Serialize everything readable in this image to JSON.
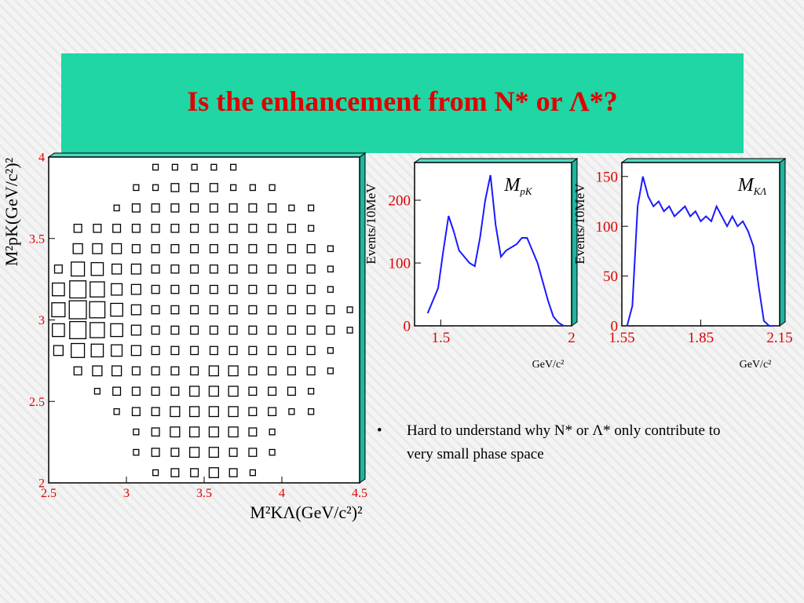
{
  "slide": {
    "title": "Is the enhancement from N* or Λ*?",
    "bullet": "Hard to understand why N* or Λ* only contribute to very small phase space"
  },
  "chart_data": [
    {
      "type": "hist2d",
      "ylabel": "M²pK(GeV/c²)²",
      "xlabel": "M²KΛ(GeV/c²)²",
      "xlim": [
        2.5,
        4.5
      ],
      "ylim": [
        2,
        4
      ],
      "xticks": [
        2.5,
        3,
        3.5,
        4,
        4.5
      ],
      "yticks": [
        2,
        2.5,
        3,
        3.5,
        4
      ],
      "x": [
        2.5625,
        2.6875,
        2.8125,
        2.9375,
        3.0625,
        3.1875,
        3.3125,
        3.4375,
        3.5625,
        3.6875,
        3.8125,
        3.9375,
        4.0625,
        4.1875,
        4.3125,
        4.4375
      ],
      "y": [
        2.0625,
        2.1875,
        2.3125,
        2.4375,
        2.5625,
        2.6875,
        2.8125,
        2.9375,
        3.0625,
        3.1875,
        3.3125,
        3.4375,
        3.5625,
        3.6875,
        3.8125,
        3.9375
      ],
      "z": [
        [
          0,
          0,
          0,
          0,
          0,
          1,
          2,
          2,
          3,
          2,
          1,
          0,
          0,
          0,
          0,
          0
        ],
        [
          0,
          0,
          0,
          0,
          1,
          2,
          2,
          3,
          3,
          2,
          2,
          1,
          0,
          0,
          0,
          0
        ],
        [
          0,
          0,
          0,
          0,
          1,
          2,
          3,
          3,
          3,
          3,
          2,
          1,
          0,
          0,
          0,
          0
        ],
        [
          0,
          0,
          0,
          1,
          2,
          2,
          3,
          3,
          3,
          3,
          2,
          2,
          1,
          1,
          0,
          0
        ],
        [
          0,
          0,
          1,
          2,
          2,
          2,
          2,
          3,
          3,
          3,
          2,
          2,
          2,
          1,
          0,
          0
        ],
        [
          0,
          2,
          3,
          3,
          2,
          2,
          2,
          2,
          3,
          3,
          2,
          2,
          2,
          2,
          1,
          0
        ],
        [
          3,
          6,
          5,
          4,
          3,
          2,
          2,
          2,
          2,
          2,
          2,
          2,
          2,
          2,
          1,
          0
        ],
        [
          5,
          9,
          7,
          5,
          3,
          2,
          2,
          2,
          2,
          2,
          2,
          2,
          2,
          2,
          2,
          1
        ],
        [
          6,
          10,
          8,
          5,
          3,
          2,
          2,
          2,
          2,
          2,
          2,
          2,
          2,
          2,
          2,
          1
        ],
        [
          5,
          9,
          7,
          4,
          3,
          2,
          2,
          2,
          2,
          2,
          2,
          2,
          2,
          2,
          1,
          0
        ],
        [
          2,
          6,
          5,
          3,
          3,
          2,
          2,
          2,
          2,
          2,
          2,
          2,
          2,
          2,
          1,
          0
        ],
        [
          0,
          3,
          3,
          3,
          2,
          2,
          2,
          2,
          2,
          2,
          2,
          2,
          2,
          2,
          1,
          0
        ],
        [
          0,
          2,
          2,
          2,
          2,
          2,
          2,
          2,
          2,
          2,
          2,
          2,
          2,
          1,
          0,
          0
        ],
        [
          0,
          0,
          0,
          1,
          2,
          2,
          2,
          2,
          2,
          2,
          2,
          2,
          1,
          1,
          0,
          0
        ],
        [
          0,
          0,
          0,
          0,
          1,
          1,
          2,
          2,
          2,
          1,
          1,
          1,
          0,
          0,
          0,
          0
        ],
        [
          0,
          0,
          0,
          0,
          0,
          1,
          1,
          1,
          1,
          1,
          0,
          0,
          0,
          0,
          0,
          0
        ]
      ],
      "color": "#000000"
    },
    {
      "type": "line",
      "ylabel": "Events/10MeV",
      "xlabel": "GeV/c²",
      "annotation": "M",
      "annotation_sub": "pK",
      "xlim": [
        1.4,
        2.0
      ],
      "ylim": [
        0,
        260
      ],
      "xticks": [
        1.5,
        2
      ],
      "yticks": [
        0,
        100,
        200
      ],
      "x": [
        1.45,
        1.47,
        1.49,
        1.51,
        1.53,
        1.55,
        1.57,
        1.59,
        1.61,
        1.63,
        1.65,
        1.67,
        1.69,
        1.71,
        1.73,
        1.75,
        1.77,
        1.79,
        1.81,
        1.83,
        1.85,
        1.87,
        1.89,
        1.91,
        1.93,
        1.95,
        1.97
      ],
      "values": [
        20,
        40,
        60,
        120,
        175,
        150,
        120,
        110,
        100,
        95,
        140,
        200,
        240,
        160,
        110,
        120,
        125,
        130,
        140,
        140,
        120,
        100,
        70,
        40,
        15,
        5,
        0
      ],
      "color": "#1a1aff"
    },
    {
      "type": "line",
      "ylabel": "Events/10MeV",
      "xlabel": "GeV/c²",
      "annotation": "M",
      "annotation_sub": "KΛ",
      "xlim": [
        1.55,
        2.15
      ],
      "ylim": [
        0,
        164
      ],
      "xticks": [
        1.55,
        1.85,
        2.15
      ],
      "yticks": [
        0,
        50,
        100,
        150
      ],
      "x": [
        1.57,
        1.59,
        1.61,
        1.63,
        1.65,
        1.67,
        1.69,
        1.71,
        1.73,
        1.75,
        1.77,
        1.79,
        1.81,
        1.83,
        1.85,
        1.87,
        1.89,
        1.91,
        1.93,
        1.95,
        1.97,
        1.99,
        2.01,
        2.03,
        2.05,
        2.07,
        2.09,
        2.11,
        2.13
      ],
      "values": [
        0,
        20,
        120,
        150,
        130,
        120,
        125,
        115,
        120,
        110,
        115,
        120,
        110,
        115,
        105,
        110,
        105,
        120,
        110,
        100,
        110,
        100,
        105,
        95,
        80,
        40,
        5,
        0,
        0
      ],
      "color": "#1a1aff"
    }
  ]
}
